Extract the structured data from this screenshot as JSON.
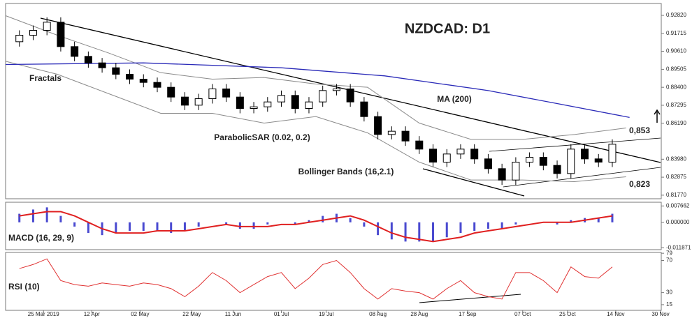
{
  "chart_data": [
    {
      "type": "candlestick",
      "title": "NZDCAD: D1",
      "x": [
        4,
        8,
        12,
        16,
        20,
        24,
        28,
        32,
        36,
        40,
        44,
        48,
        52,
        56,
        60,
        64,
        68,
        72,
        76,
        80,
        84,
        88,
        92,
        96,
        100,
        104,
        108,
        112,
        116,
        120,
        124,
        128,
        132,
        136,
        140,
        144,
        148,
        152,
        156,
        160,
        164,
        168,
        172,
        176
      ],
      "open": [
        0.912,
        0.916,
        0.919,
        0.924,
        0.909,
        0.903,
        0.899,
        0.896,
        0.892,
        0.889,
        0.887,
        0.884,
        0.878,
        0.873,
        0.877,
        0.883,
        0.878,
        0.871,
        0.872,
        0.875,
        0.879,
        0.871,
        0.875,
        0.882,
        0.883,
        0.875,
        0.866,
        0.855,
        0.857,
        0.851,
        0.846,
        0.838,
        0.843,
        0.846,
        0.84,
        0.834,
        0.827,
        0.838,
        0.841,
        0.836,
        0.831,
        0.846,
        0.84,
        0.838
      ],
      "high": [
        0.919,
        0.922,
        0.927,
        0.927,
        0.912,
        0.906,
        0.902,
        0.899,
        0.895,
        0.892,
        0.89,
        0.887,
        0.881,
        0.88,
        0.886,
        0.886,
        0.881,
        0.875,
        0.878,
        0.882,
        0.882,
        0.878,
        0.885,
        0.886,
        0.886,
        0.878,
        0.869,
        0.86,
        0.86,
        0.854,
        0.849,
        0.846,
        0.849,
        0.849,
        0.843,
        0.837,
        0.841,
        0.844,
        0.844,
        0.839,
        0.849,
        0.849,
        0.843,
        0.852
      ],
      "low": [
        0.909,
        0.913,
        0.916,
        0.906,
        0.9,
        0.896,
        0.893,
        0.889,
        0.886,
        0.884,
        0.881,
        0.875,
        0.87,
        0.87,
        0.874,
        0.875,
        0.868,
        0.868,
        0.869,
        0.872,
        0.868,
        0.868,
        0.872,
        0.879,
        0.872,
        0.863,
        0.852,
        0.852,
        0.848,
        0.843,
        0.835,
        0.835,
        0.84,
        0.837,
        0.831,
        0.824,
        0.824,
        0.835,
        0.833,
        0.828,
        0.828,
        0.837,
        0.835,
        0.835
      ],
      "close": [
        0.916,
        0.919,
        0.924,
        0.909,
        0.903,
        0.899,
        0.896,
        0.892,
        0.889,
        0.887,
        0.884,
        0.878,
        0.873,
        0.877,
        0.883,
        0.878,
        0.871,
        0.872,
        0.875,
        0.879,
        0.871,
        0.875,
        0.882,
        0.883,
        0.875,
        0.866,
        0.855,
        0.857,
        0.851,
        0.846,
        0.838,
        0.843,
        0.846,
        0.84,
        0.834,
        0.827,
        0.838,
        0.841,
        0.836,
        0.831,
        0.846,
        0.84,
        0.838,
        0.849
      ],
      "color_up": "#ffffff",
      "color_down": "#000000",
      "series": [
        {
          "name": "MA (200)",
          "color": "#2a2ab8",
          "x": [
            0,
            40,
            80,
            110,
            140,
            160,
            181
          ],
          "values": [
            0.898,
            0.899,
            0.896,
            0.891,
            0.882,
            0.874,
            0.8655
          ]
        }
      ],
      "bands": {
        "name": "Bollinger Bands (16,2.1)",
        "color": "#8a8a8a",
        "x": [
          0,
          15,
          30,
          45,
          60,
          75,
          90,
          105,
          120,
          135,
          150,
          165,
          180
        ],
        "upper": [
          0.928,
          0.916,
          0.905,
          0.893,
          0.889,
          0.89,
          0.886,
          0.884,
          0.862,
          0.852,
          0.852,
          0.855,
          0.859
        ],
        "lower": [
          0.9,
          0.892,
          0.88,
          0.868,
          0.868,
          0.862,
          0.866,
          0.856,
          0.838,
          0.827,
          0.827,
          0.826,
          0.829
        ]
      },
      "annotations": [
        "Fractals",
        "ParabolicSAR (0.02, 0.2)",
        "0,853",
        "0,823"
      ],
      "xlim": [
        0,
        190
      ],
      "ylim": [
        0.8155,
        0.9355
      ],
      "yticks": [
        {
          "value": 0.9282,
          "label": "0.92820"
        },
        {
          "value": 0.91715,
          "label": "0.91715"
        },
        {
          "value": 0.9061,
          "label": "0.90610"
        },
        {
          "value": 0.89505,
          "label": "0.89505"
        },
        {
          "value": 0.884,
          "label": "0.88400"
        },
        {
          "value": 0.87295,
          "label": "0.87295"
        },
        {
          "value": 0.8619,
          "label": "0.86190"
        },
        {
          "value": 0.8398,
          "label": "0.83980"
        },
        {
          "value": 0.82875,
          "label": "0.82875"
        },
        {
          "value": 0.8177,
          "label": "0.81770"
        }
      ]
    },
    {
      "type": "macd",
      "title": "MACD (16, 29, 9)",
      "x": [
        4,
        8,
        12,
        16,
        20,
        24,
        28,
        32,
        36,
        40,
        44,
        48,
        52,
        56,
        60,
        64,
        68,
        72,
        76,
        80,
        84,
        88,
        92,
        96,
        100,
        104,
        108,
        112,
        116,
        120,
        124,
        128,
        132,
        136,
        140,
        144,
        148,
        152,
        156,
        160,
        164,
        168,
        172,
        176
      ],
      "histogram": {
        "color": "#4a4ad0",
        "values": [
          0.004,
          0.006,
          0.007,
          0.003,
          -0.002,
          -0.005,
          -0.006,
          -0.005,
          -0.004,
          -0.004,
          -0.004,
          -0.005,
          -0.004,
          -0.002,
          0.0,
          -0.001,
          -0.003,
          -0.003,
          -0.001,
          0.0,
          -0.001,
          0.001,
          0.003,
          0.004,
          0.002,
          -0.002,
          -0.006,
          -0.008,
          -0.009,
          -0.009,
          -0.009,
          -0.007,
          -0.005,
          -0.004,
          -0.003,
          -0.003,
          -0.001,
          0.0,
          0.0,
          -0.001,
          0.001,
          0.002,
          0.002,
          0.004
        ]
      },
      "signal": {
        "color": "#e02020",
        "values": [
          0.003,
          0.004,
          0.005,
          0.005,
          0.003,
          0.0,
          -0.003,
          -0.005,
          -0.005,
          -0.005,
          -0.004,
          -0.004,
          -0.004,
          -0.003,
          -0.002,
          -0.001,
          -0.002,
          -0.002,
          -0.002,
          -0.001,
          -0.001,
          0.0,
          0.001,
          0.002,
          0.003,
          0.001,
          -0.002,
          -0.005,
          -0.007,
          -0.008,
          -0.009,
          -0.008,
          -0.007,
          -0.005,
          -0.004,
          -0.003,
          -0.002,
          -0.001,
          0.0,
          0.0,
          0.0,
          0.001,
          0.002,
          0.003
        ]
      },
      "xlim": [
        0,
        190
      ],
      "ylim": [
        -0.0128,
        0.0094
      ],
      "yticks": [
        {
          "value": 0.007662,
          "label": "0.007662"
        },
        {
          "value": 0,
          "label": "0.000000"
        },
        {
          "value": -0.011871,
          "label": "-0.011871"
        }
      ]
    },
    {
      "type": "line",
      "title": "RSI (10)",
      "x": [
        4,
        8,
        12,
        16,
        20,
        24,
        28,
        32,
        36,
        40,
        44,
        48,
        52,
        56,
        60,
        64,
        68,
        72,
        76,
        80,
        84,
        88,
        92,
        96,
        100,
        104,
        108,
        112,
        116,
        120,
        124,
        128,
        132,
        136,
        140,
        144,
        148,
        152,
        156,
        160,
        164,
        168,
        172,
        176
      ],
      "values": [
        60,
        65,
        72,
        45,
        40,
        38,
        42,
        40,
        38,
        42,
        40,
        35,
        25,
        38,
        55,
        45,
        30,
        40,
        50,
        55,
        35,
        48,
        65,
        70,
        55,
        35,
        22,
        35,
        32,
        30,
        22,
        35,
        45,
        30,
        25,
        22,
        55,
        55,
        45,
        30,
        62,
        50,
        48,
        62
      ],
      "color": "#e03030",
      "xlim": [
        0,
        190
      ],
      "ylim": [
        8,
        80
      ],
      "yticks": [
        79,
        70,
        30,
        15
      ],
      "xticks": [
        {
          "value": 11,
          "label": "25 Mar 2019"
        },
        {
          "value": 25,
          "label": "12 Apr"
        },
        {
          "value": 39,
          "label": "02 May"
        },
        {
          "value": 54,
          "label": "22 May"
        },
        {
          "value": 66,
          "label": "11 Jun"
        },
        {
          "value": 80,
          "label": "01 Jul"
        },
        {
          "value": 93,
          "label": "19 Jul"
        },
        {
          "value": 108,
          "label": "08 Aug"
        },
        {
          "value": 120,
          "label": "28 Aug"
        },
        {
          "value": 134,
          "label": "17 Sep"
        },
        {
          "value": 150,
          "label": "07 Oct"
        },
        {
          "value": 163,
          "label": "25 Oct"
        },
        {
          "value": 177,
          "label": "14 Nov"
        },
        {
          "value": 190,
          "label": "30 Nov"
        }
      ]
    }
  ]
}
